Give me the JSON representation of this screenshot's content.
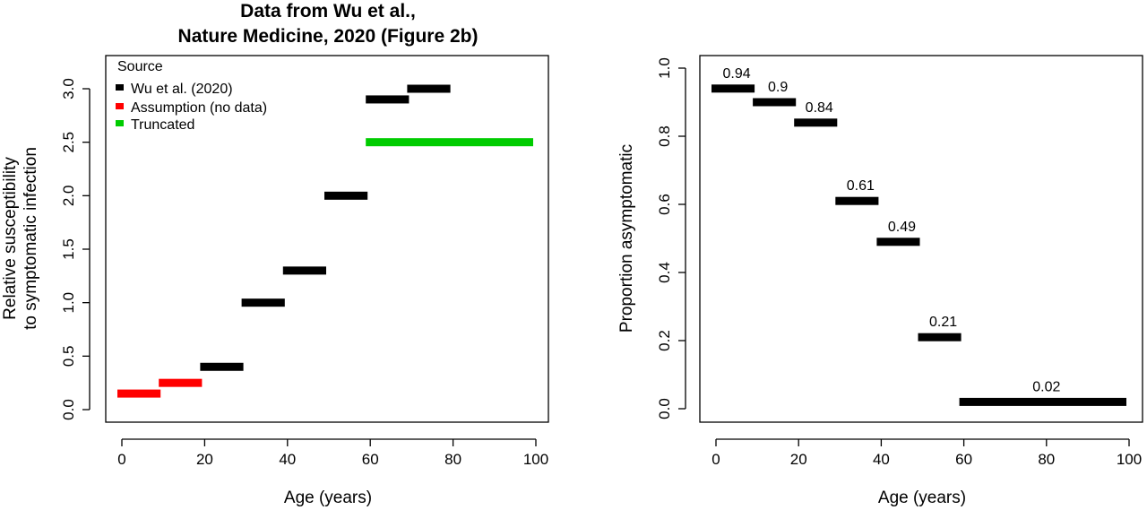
{
  "chart_data": [
    {
      "type": "bar",
      "orientation": "horizontal-segments",
      "title": [
        "Data from Wu et al.,",
        "Nature Medicine, 2020 (Figure 2b)"
      ],
      "xlabel": "Age (years)",
      "ylabel": [
        "Relative susceptibility",
        "to symptomatic infection"
      ],
      "xlim": [
        0,
        100
      ],
      "ylim": [
        0,
        3.0
      ],
      "xticks": [
        "0",
        "20",
        "40",
        "60",
        "80",
        "100"
      ],
      "yticks": [
        "0.0",
        "0.5",
        "1.0",
        "1.5",
        "2.0",
        "2.5",
        "3.0"
      ],
      "legend": {
        "title": "Source",
        "position": "top-left",
        "entries": [
          {
            "label": "Wu et al. (2020)",
            "color": "#000000"
          },
          {
            "label": "Assumption (no data)",
            "color": "#ff0000"
          },
          {
            "label": "Truncated",
            "color": "#00cc00"
          }
        ]
      },
      "segments": [
        {
          "x0": 0,
          "x1": 10,
          "y": 0.15,
          "source": "Assumption (no data)"
        },
        {
          "x0": 10,
          "x1": 20,
          "y": 0.25,
          "source": "Assumption (no data)"
        },
        {
          "x0": 20,
          "x1": 30,
          "y": 0.4,
          "source": "Wu et al. (2020)"
        },
        {
          "x0": 30,
          "x1": 40,
          "y": 1.0,
          "source": "Wu et al. (2020)"
        },
        {
          "x0": 40,
          "x1": 50,
          "y": 1.3,
          "source": "Wu et al. (2020)"
        },
        {
          "x0": 50,
          "x1": 60,
          "y": 2.0,
          "source": "Wu et al. (2020)"
        },
        {
          "x0": 60,
          "x1": 70,
          "y": 2.9,
          "source": "Wu et al. (2020)"
        },
        {
          "x0": 70,
          "x1": 80,
          "y": 3.0,
          "source": "Wu et al. (2020)"
        },
        {
          "x0": 60,
          "x1": 100,
          "y": 2.5,
          "source": "Truncated"
        }
      ]
    },
    {
      "type": "bar",
      "orientation": "horizontal-segments",
      "title": "",
      "xlabel": "Age (years)",
      "ylabel": "Proportion asymptomatic",
      "xlim": [
        0,
        100
      ],
      "ylim": [
        0,
        1.0
      ],
      "xticks": [
        "0",
        "20",
        "40",
        "60",
        "80",
        "100"
      ],
      "yticks": [
        "0.0",
        "0.2",
        "0.4",
        "0.6",
        "0.8",
        "1.0"
      ],
      "segments": [
        {
          "x0": 0,
          "x1": 10,
          "y": 0.94,
          "label": "0.94"
        },
        {
          "x0": 10,
          "x1": 20,
          "y": 0.9,
          "label": "0.9"
        },
        {
          "x0": 20,
          "x1": 30,
          "y": 0.84,
          "label": "0.84"
        },
        {
          "x0": 30,
          "x1": 40,
          "y": 0.61,
          "label": "0.61"
        },
        {
          "x0": 40,
          "x1": 50,
          "y": 0.49,
          "label": "0.49"
        },
        {
          "x0": 50,
          "x1": 60,
          "y": 0.21,
          "label": "0.21"
        },
        {
          "x0": 60,
          "x1": 100,
          "y": 0.02,
          "label": "0.02"
        }
      ],
      "color": "#000000"
    }
  ]
}
